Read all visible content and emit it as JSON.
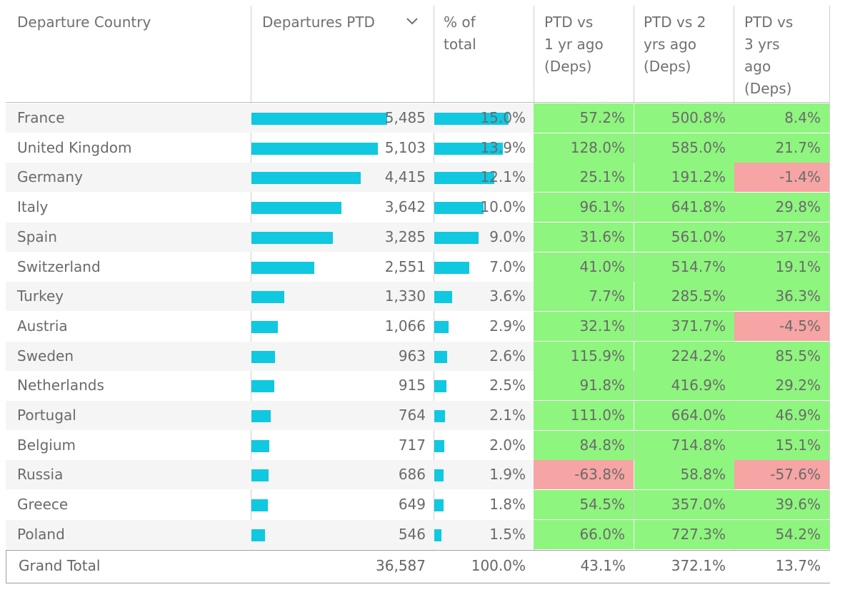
{
  "chart_data": {
    "type": "table",
    "headers": {
      "country": "Departure Country",
      "departures": "Departures PTD",
      "pct_total": "% of\ntotal",
      "vs1": "PTD vs\n1 yr ago\n(Deps)",
      "vs2": "PTD vs 2\nyrs ago\n(Deps)",
      "vs3": "PTD vs\n3 yrs\nago\n(Deps)"
    },
    "rows": [
      {
        "country": "France",
        "departures": 5485,
        "departures_label": "5,485",
        "pct": 15.0,
        "pct_label": "15.0%",
        "vs1": 57.2,
        "vs1_label": "57.2%",
        "vs2": 500.8,
        "vs2_label": "500.8%",
        "vs3": 8.4,
        "vs3_label": "8.4%"
      },
      {
        "country": "United Kingdom",
        "departures": 5103,
        "departures_label": "5,103",
        "pct": 13.9,
        "pct_label": "13.9%",
        "vs1": 128.0,
        "vs1_label": "128.0%",
        "vs2": 585.0,
        "vs2_label": "585.0%",
        "vs3": 21.7,
        "vs3_label": "21.7%"
      },
      {
        "country": "Germany",
        "departures": 4415,
        "departures_label": "4,415",
        "pct": 12.1,
        "pct_label": "12.1%",
        "vs1": 25.1,
        "vs1_label": "25.1%",
        "vs2": 191.2,
        "vs2_label": "191.2%",
        "vs3": -1.4,
        "vs3_label": "-1.4%"
      },
      {
        "country": "Italy",
        "departures": 3642,
        "departures_label": "3,642",
        "pct": 10.0,
        "pct_label": "10.0%",
        "vs1": 96.1,
        "vs1_label": "96.1%",
        "vs2": 641.8,
        "vs2_label": "641.8%",
        "vs3": 29.8,
        "vs3_label": "29.8%"
      },
      {
        "country": "Spain",
        "departures": 3285,
        "departures_label": "3,285",
        "pct": 9.0,
        "pct_label": "9.0%",
        "vs1": 31.6,
        "vs1_label": "31.6%",
        "vs2": 561.0,
        "vs2_label": "561.0%",
        "vs3": 37.2,
        "vs3_label": "37.2%"
      },
      {
        "country": "Switzerland",
        "departures": 2551,
        "departures_label": "2,551",
        "pct": 7.0,
        "pct_label": "7.0%",
        "vs1": 41.0,
        "vs1_label": "41.0%",
        "vs2": 514.7,
        "vs2_label": "514.7%",
        "vs3": 19.1,
        "vs3_label": "19.1%"
      },
      {
        "country": "Turkey",
        "departures": 1330,
        "departures_label": "1,330",
        "pct": 3.6,
        "pct_label": "3.6%",
        "vs1": 7.7,
        "vs1_label": "7.7%",
        "vs2": 285.5,
        "vs2_label": "285.5%",
        "vs3": 36.3,
        "vs3_label": "36.3%"
      },
      {
        "country": "Austria",
        "departures": 1066,
        "departures_label": "1,066",
        "pct": 2.9,
        "pct_label": "2.9%",
        "vs1": 32.1,
        "vs1_label": "32.1%",
        "vs2": 371.7,
        "vs2_label": "371.7%",
        "vs3": -4.5,
        "vs3_label": "-4.5%"
      },
      {
        "country": "Sweden",
        "departures": 963,
        "departures_label": "963",
        "pct": 2.6,
        "pct_label": "2.6%",
        "vs1": 115.9,
        "vs1_label": "115.9%",
        "vs2": 224.2,
        "vs2_label": "224.2%",
        "vs3": 85.5,
        "vs3_label": "85.5%"
      },
      {
        "country": "Netherlands",
        "departures": 915,
        "departures_label": "915",
        "pct": 2.5,
        "pct_label": "2.5%",
        "vs1": 91.8,
        "vs1_label": "91.8%",
        "vs2": 416.9,
        "vs2_label": "416.9%",
        "vs3": 29.2,
        "vs3_label": "29.2%"
      },
      {
        "country": "Portugal",
        "departures": 764,
        "departures_label": "764",
        "pct": 2.1,
        "pct_label": "2.1%",
        "vs1": 111.0,
        "vs1_label": "111.0%",
        "vs2": 664.0,
        "vs2_label": "664.0%",
        "vs3": 46.9,
        "vs3_label": "46.9%"
      },
      {
        "country": "Belgium",
        "departures": 717,
        "departures_label": "717",
        "pct": 2.0,
        "pct_label": "2.0%",
        "vs1": 84.8,
        "vs1_label": "84.8%",
        "vs2": 714.8,
        "vs2_label": "714.8%",
        "vs3": 15.1,
        "vs3_label": "15.1%"
      },
      {
        "country": "Russia",
        "departures": 686,
        "departures_label": "686",
        "pct": 1.9,
        "pct_label": "1.9%",
        "vs1": -63.8,
        "vs1_label": "-63.8%",
        "vs2": 58.8,
        "vs2_label": "58.8%",
        "vs3": -57.6,
        "vs3_label": "-57.6%"
      },
      {
        "country": "Greece",
        "departures": 649,
        "departures_label": "649",
        "pct": 1.8,
        "pct_label": "1.8%",
        "vs1": 54.5,
        "vs1_label": "54.5%",
        "vs2": 357.0,
        "vs2_label": "357.0%",
        "vs3": 39.6,
        "vs3_label": "39.6%"
      },
      {
        "country": "Poland",
        "departures": 546,
        "departures_label": "546",
        "pct": 1.5,
        "pct_label": "1.5%",
        "vs1": 66.0,
        "vs1_label": "66.0%",
        "vs2": 727.3,
        "vs2_label": "727.3%",
        "vs3": 54.2,
        "vs3_label": "54.2%"
      }
    ],
    "total": {
      "label": "Grand Total",
      "departures_label": "36,587",
      "pct_label": "100.0%",
      "vs1_label": "43.1%",
      "vs2_label": "372.1%",
      "vs3_label": "13.7%"
    },
    "colors": {
      "bar": "#10c8e0",
      "positive": "#8ef57e",
      "negative": "#f6a4a4",
      "row_stripe": "#f5f5f5"
    },
    "sort": {
      "column": "Departures PTD",
      "direction": "descending",
      "icon": "chevron-down-icon"
    }
  }
}
